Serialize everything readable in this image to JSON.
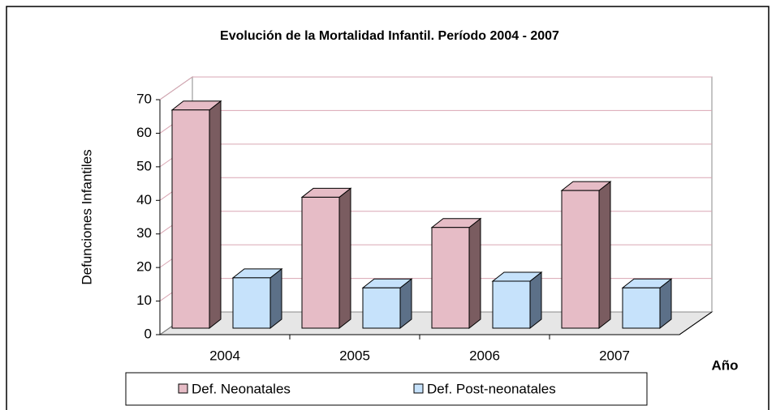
{
  "chart_data": {
    "type": "bar3d",
    "title": "Evolución de la Mortalidad Infantil. Período 2004 - 2007",
    "y_label": "Defunciones Infantiles",
    "x_label": "Año",
    "categories": [
      "2004",
      "2005",
      "2006",
      "2007"
    ],
    "series": [
      {
        "name": "Def. Neonatales",
        "color": "#e6bcc6",
        "side": "#7a5c60",
        "values": [
          65,
          39,
          30,
          41
        ]
      },
      {
        "name": "Def. Post-neonatales",
        "color": "#c6e2fb",
        "side": "#5c7088",
        "values": [
          15,
          12,
          14,
          12
        ]
      }
    ],
    "ylim": [
      0,
      70
    ],
    "yticks": [
      0,
      10,
      20,
      30,
      40,
      50,
      60,
      70
    ],
    "grid": true,
    "grid_color": "#d9a6b3"
  }
}
